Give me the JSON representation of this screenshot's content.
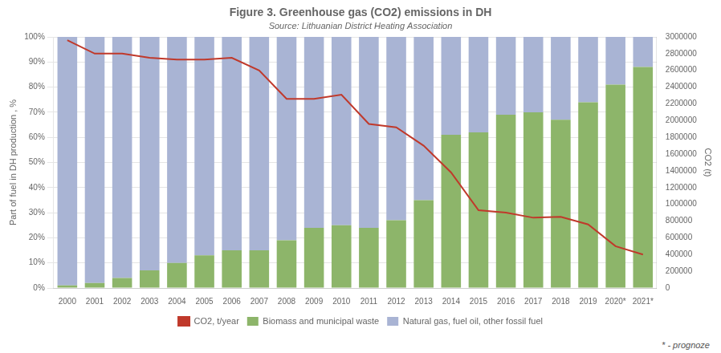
{
  "chart_data": {
    "type": "bar",
    "title": "Figure 3. Greenhouse gas (CO2) emissions in DH",
    "subtitle": "Source: Lithuanian District Heating Association",
    "annotation": "* - prognoze",
    "stacked": true,
    "grid": true,
    "legend": "bottom",
    "categories": [
      "2000",
      "2001",
      "2002",
      "2003",
      "2004",
      "2005",
      "2006",
      "2007",
      "2008",
      "2009",
      "2010",
      "2011",
      "2012",
      "2013",
      "2014",
      "2015",
      "2016",
      "2017",
      "2018",
      "2019",
      "2020*",
      "2021*"
    ],
    "ylabel": "Part of fuel in DH production , %",
    "y2label": "CO2 (t)",
    "ylim": [
      0,
      100
    ],
    "yticks": [
      {
        "value": 0,
        "label": "0%"
      },
      {
        "value": 10,
        "label": "10%"
      },
      {
        "value": 20,
        "label": "20%"
      },
      {
        "value": 30,
        "label": "30%"
      },
      {
        "value": 40,
        "label": "40%"
      },
      {
        "value": 50,
        "label": "50%"
      },
      {
        "value": 60,
        "label": "60%"
      },
      {
        "value": 70,
        "label": "70%"
      },
      {
        "value": 80,
        "label": "80%"
      },
      {
        "value": 90,
        "label": "90%"
      },
      {
        "value": 100,
        "label": "100%"
      }
    ],
    "y2lim": [
      0,
      3000000
    ],
    "y2ticks": [
      0,
      200000,
      400000,
      600000,
      800000,
      1000000,
      1200000,
      1400000,
      1600000,
      1800000,
      2000000,
      2200000,
      2400000,
      2600000,
      2800000,
      3000000
    ],
    "series": [
      {
        "name": "Biomass and municipal waste",
        "type": "bar",
        "color": "#8db56a",
        "values": [
          1,
          2,
          4,
          7,
          10,
          13,
          15,
          15,
          19,
          24,
          25,
          24,
          27,
          35,
          61,
          62,
          69,
          70,
          67,
          74,
          81,
          88
        ]
      },
      {
        "name": "Natural gas, fuel oil, other fossil fuel",
        "type": "bar",
        "color": "#a9b4d4",
        "values": [
          99,
          98,
          96,
          93,
          90,
          87,
          85,
          85,
          81,
          76,
          75,
          76,
          73,
          65,
          39,
          38,
          31,
          30,
          33,
          26,
          19,
          12
        ]
      },
      {
        "name": "CO2, t/year",
        "type": "line",
        "axis": "y2",
        "color": "#c0392b",
        "values": [
          2960000,
          2800000,
          2800000,
          2750000,
          2730000,
          2730000,
          2750000,
          2600000,
          2260000,
          2260000,
          2310000,
          1960000,
          1920000,
          1700000,
          1380000,
          930000,
          900000,
          840000,
          850000,
          760000,
          500000,
          400000
        ]
      }
    ]
  }
}
